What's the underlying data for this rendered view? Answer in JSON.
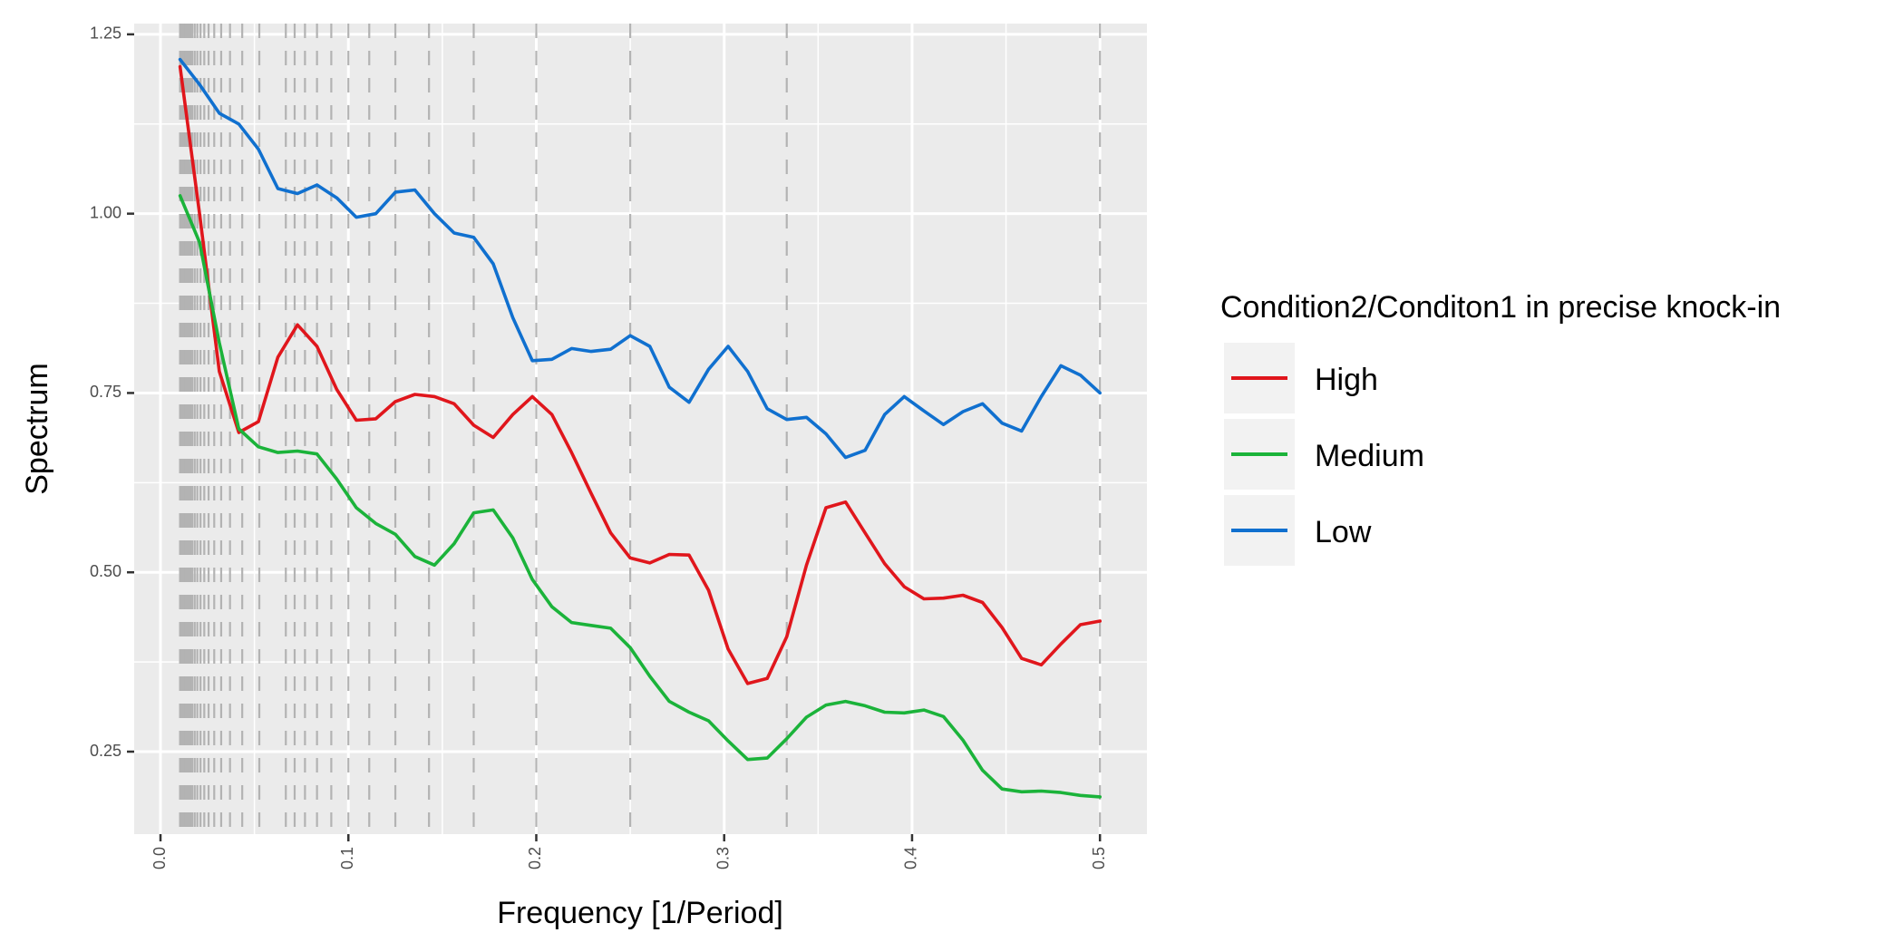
{
  "chart_data": {
    "type": "line",
    "xlabel": "Frequency [1/Period]",
    "ylabel": "Spectrum",
    "xlim": [
      -0.014,
      0.525
    ],
    "ylim": [
      0.135,
      1.265
    ],
    "x_ticks": [
      0.0,
      0.1,
      0.2,
      0.3,
      0.4,
      0.5
    ],
    "x_tick_labels": [
      "0.0",
      "0.1",
      "0.2",
      "0.3",
      "0.4",
      "0.5"
    ],
    "y_ticks": [
      0.25,
      0.5,
      0.75,
      1.0,
      1.25
    ],
    "y_tick_labels": [
      "0.25",
      "0.50",
      "0.75",
      "1.00",
      "1.25"
    ],
    "grid": true,
    "legend_position": "right",
    "legend_title": "Condition2/Conditon1 in precise knock-in",
    "reference_lines": {
      "style": "dashed",
      "color": "#b3b3b3",
      "x_values": [
        0.0104,
        0.0109,
        0.0114,
        0.012,
        0.0127,
        0.0133,
        0.0141,
        0.0149,
        0.0159,
        0.0169,
        0.0182,
        0.0196,
        0.0213,
        0.0233,
        0.0256,
        0.0286,
        0.0323,
        0.037,
        0.0435,
        0.0526,
        0.0667,
        0.0714,
        0.0769,
        0.0833,
        0.0909,
        0.1,
        0.1111,
        0.125,
        0.1429,
        0.1667,
        0.2,
        0.25,
        0.3333,
        0.5
      ]
    },
    "x": [
      0.0104,
      0.0208,
      0.0313,
      0.0417,
      0.0521,
      0.0625,
      0.0729,
      0.0833,
      0.0938,
      0.1042,
      0.1146,
      0.125,
      0.1354,
      0.1458,
      0.1563,
      0.1667,
      0.1771,
      0.1875,
      0.1979,
      0.2083,
      0.2188,
      0.2292,
      0.2396,
      0.25,
      0.2604,
      0.2708,
      0.2813,
      0.2917,
      0.3021,
      0.3125,
      0.3229,
      0.3333,
      0.3438,
      0.3542,
      0.3646,
      0.375,
      0.3854,
      0.3958,
      0.4063,
      0.4167,
      0.4271,
      0.4375,
      0.4479,
      0.4583,
      0.4688,
      0.4792,
      0.4896,
      0.5
    ],
    "series": [
      {
        "name": "High",
        "color": "#e0161c",
        "values": [
          1.205,
          1.0,
          0.78,
          0.695,
          0.71,
          0.8,
          0.845,
          0.815,
          0.755,
          0.712,
          0.714,
          0.738,
          0.748,
          0.745,
          0.735,
          0.705,
          0.688,
          0.72,
          0.745,
          0.72,
          0.667,
          0.61,
          0.555,
          0.52,
          0.513,
          0.525,
          0.524,
          0.475,
          0.393,
          0.345,
          0.352,
          0.41,
          0.51,
          0.59,
          0.598,
          0.555,
          0.512,
          0.48,
          0.463,
          0.464,
          0.468,
          0.458,
          0.423,
          0.38,
          0.371,
          0.4,
          0.427,
          0.432
        ]
      },
      {
        "name": "Medium",
        "color": "#1bb33a",
        "values": [
          1.025,
          0.96,
          0.82,
          0.7,
          0.675,
          0.667,
          0.669,
          0.665,
          0.63,
          0.59,
          0.568,
          0.553,
          0.522,
          0.51,
          0.54,
          0.583,
          0.587,
          0.548,
          0.49,
          0.452,
          0.43,
          0.426,
          0.422,
          0.395,
          0.355,
          0.32,
          0.305,
          0.293,
          0.265,
          0.239,
          0.241,
          0.268,
          0.298,
          0.315,
          0.32,
          0.314,
          0.305,
          0.304,
          0.308,
          0.299,
          0.266,
          0.224,
          0.198,
          0.194,
          0.195,
          0.193,
          0.189,
          0.187
        ]
      },
      {
        "name": "Low",
        "color": "#1070cf",
        "values": [
          1.215,
          1.18,
          1.14,
          1.125,
          1.09,
          1.035,
          1.028,
          1.04,
          1.022,
          0.995,
          1.0,
          1.03,
          1.033,
          1.0,
          0.973,
          0.967,
          0.93,
          0.855,
          0.795,
          0.797,
          0.812,
          0.808,
          0.811,
          0.83,
          0.815,
          0.758,
          0.737,
          0.783,
          0.815,
          0.78,
          0.728,
          0.713,
          0.716,
          0.693,
          0.66,
          0.67,
          0.72,
          0.745,
          0.725,
          0.706,
          0.724,
          0.735,
          0.708,
          0.697,
          0.745,
          0.788,
          0.775,
          0.75
        ]
      }
    ]
  }
}
